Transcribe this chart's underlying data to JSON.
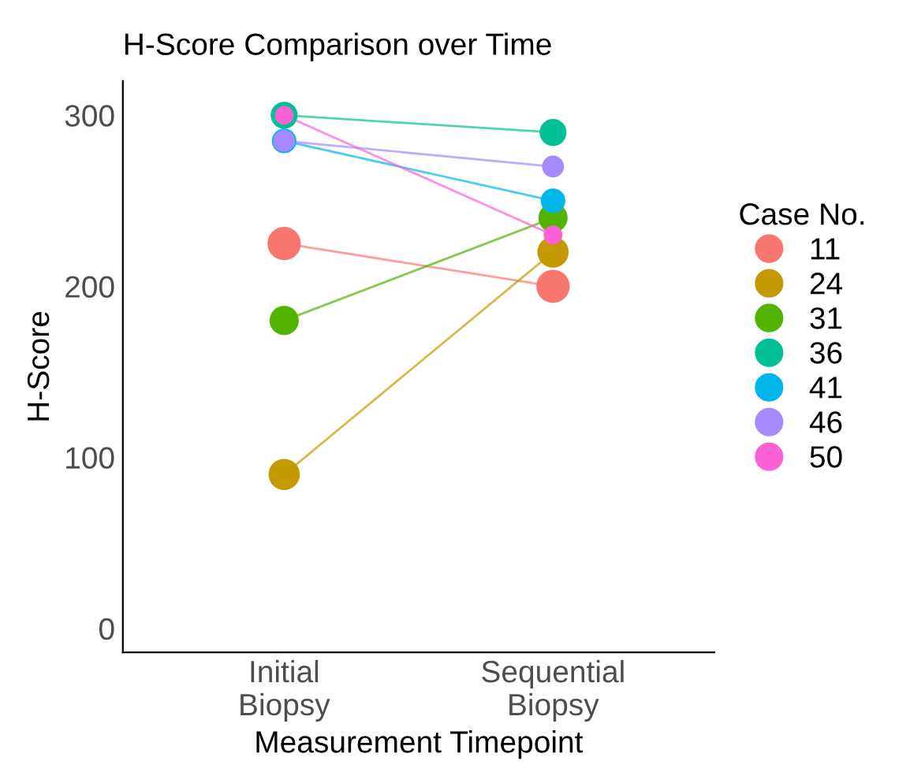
{
  "chart_data": {
    "type": "line",
    "title": "H-Score Comparison over Time",
    "xlabel": "Measurement Timepoint",
    "ylabel": "H-Score",
    "legend_title": "Case No.",
    "categories": [
      "Initial\nBiopsy",
      "Sequential\nBiopsy"
    ],
    "series": [
      {
        "name": "11",
        "color": "#f8766d",
        "values": [
          225,
          200
        ]
      },
      {
        "name": "24",
        "color": "#c49a00",
        "values": [
          90,
          220
        ]
      },
      {
        "name": "31",
        "color": "#53b400",
        "values": [
          180,
          240
        ]
      },
      {
        "name": "36",
        "color": "#00c094",
        "values": [
          300,
          290
        ]
      },
      {
        "name": "41",
        "color": "#00b6eb",
        "values": [
          285,
          250
        ]
      },
      {
        "name": "46",
        "color": "#a58aff",
        "values": [
          285,
          270
        ]
      },
      {
        "name": "50",
        "color": "#fb61d7",
        "values": [
          300,
          230
        ]
      }
    ],
    "ylim": [
      -14,
      320
    ],
    "yticks": [
      0,
      100,
      200,
      300
    ],
    "grid": false,
    "legend": "right",
    "marker": "circle",
    "line_style": "solid"
  }
}
